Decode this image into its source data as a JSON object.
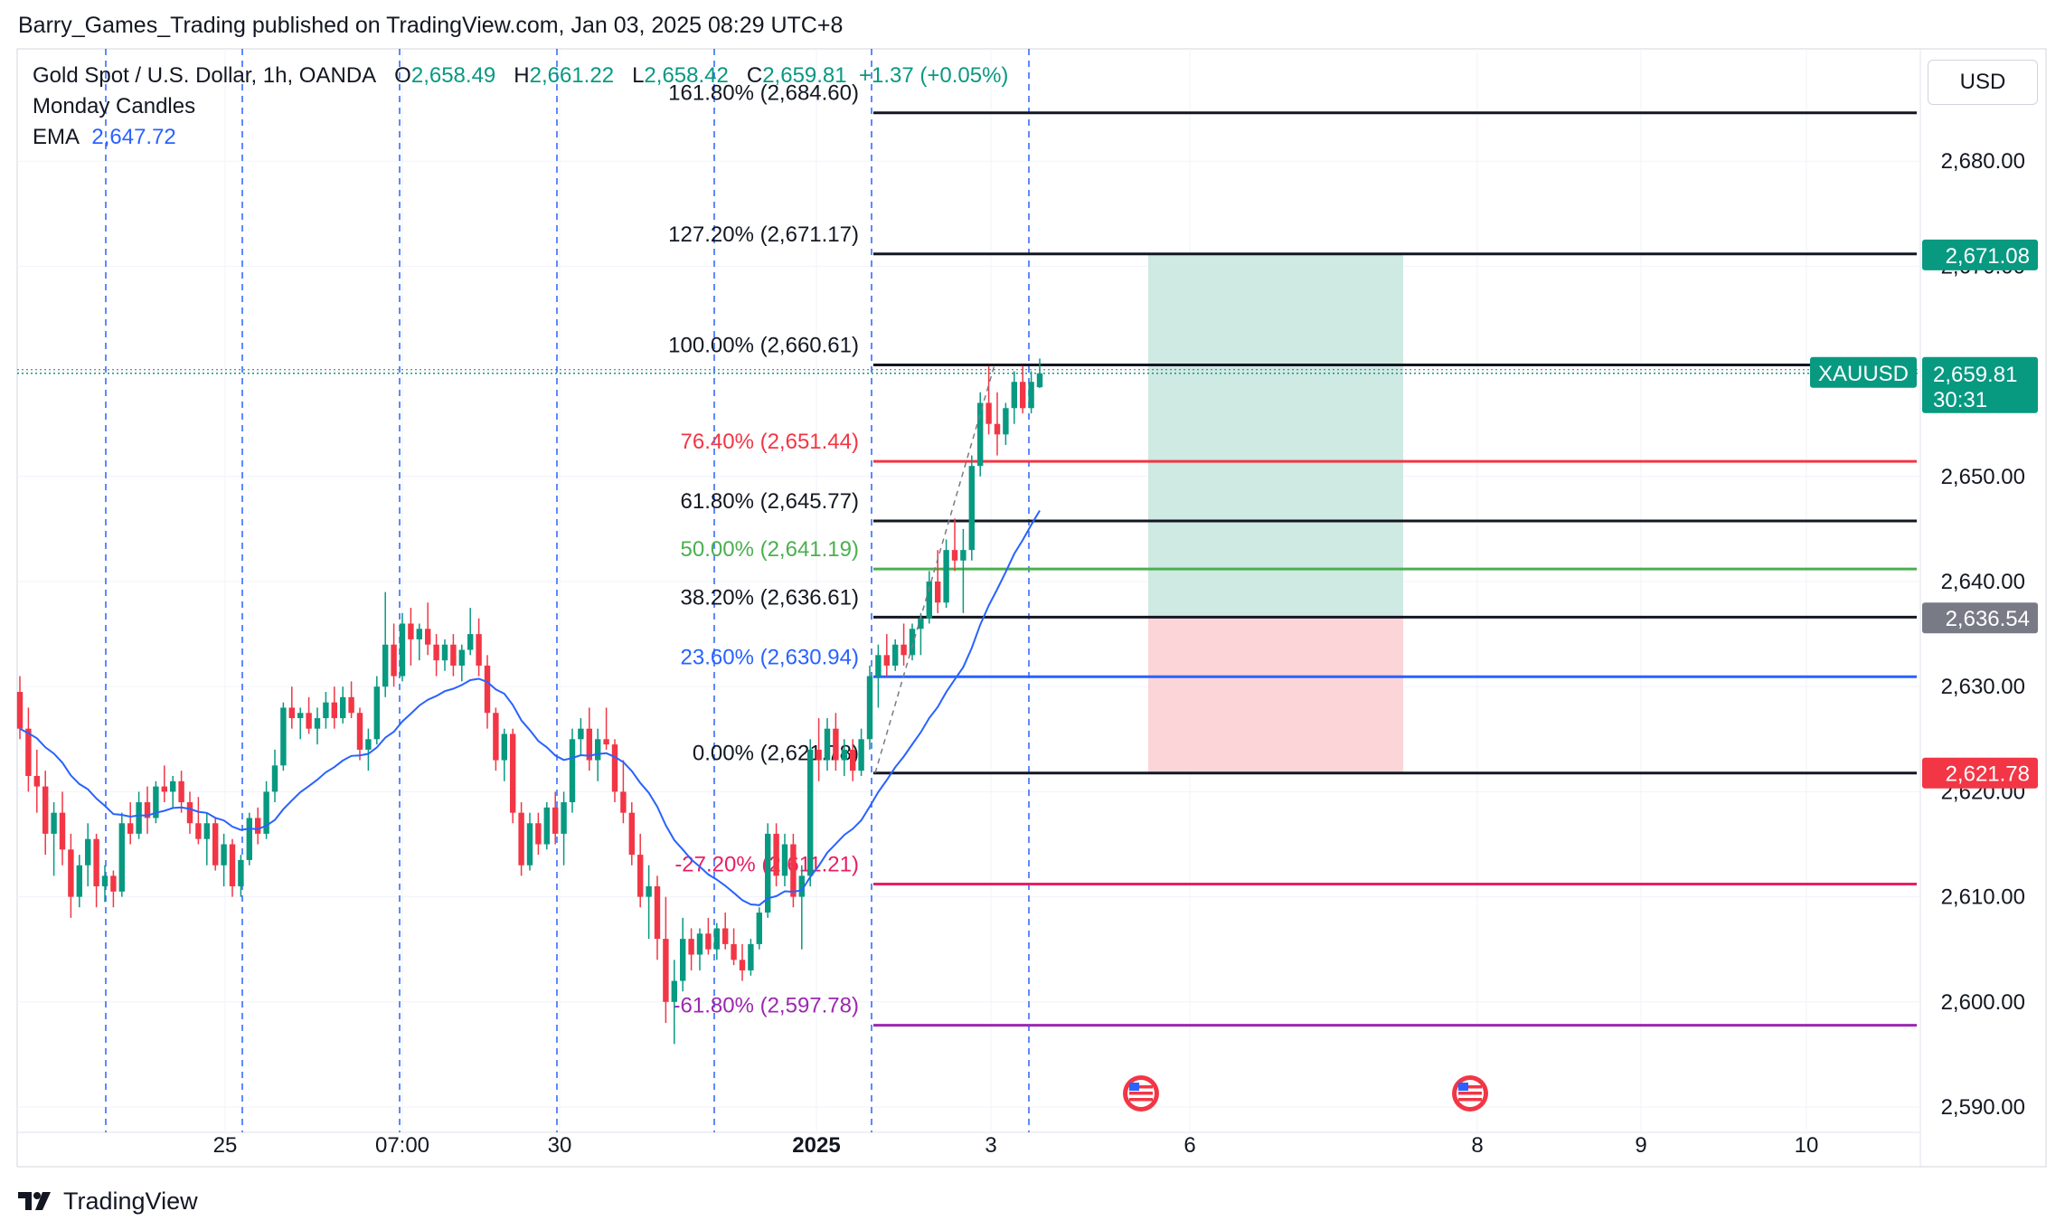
{
  "header": {
    "publisher_line": "Barry_Games_Trading published on TradingView.com, Jan 03, 2025 08:29 UTC+8"
  },
  "legend": {
    "symbol": "Gold Spot / U.S. Dollar, 1h, OANDA",
    "open_label": "O",
    "open": "2,658.49",
    "high_label": "H",
    "high": "2,661.22",
    "low_label": "L",
    "low": "2,658.42",
    "close_label": "C",
    "close": "2,659.81",
    "change": "+1.37 (+0.05%)",
    "indicator_1": "Monday Candles",
    "indicator_2_label": "EMA",
    "indicator_2_value": "2,647.72"
  },
  "currency_button": "USD",
  "footer": {
    "brand": "TradingView"
  },
  "colors": {
    "up": "#089981",
    "down": "#f23645",
    "ema": "#2962ff",
    "fib_black": "#131722",
    "fib_red": "#f23645",
    "fib_green": "#4caf50",
    "fib_blue": "#2962ff",
    "fib_pink": "#e91e63",
    "fib_purple": "#9c27b0",
    "profit_zone": "#cfe9e3",
    "loss_zone": "#fbd5d8",
    "price_badge": "#089981",
    "entry_badge": "#787b86"
  },
  "icons": [
    "us-flag-icon",
    "tradingview-logo-icon"
  ],
  "chart_data": {
    "type": "candlestick",
    "symbol": "XAUUSD",
    "ylim": [
      2585,
      2690
    ],
    "y_ticks": [
      "2,590.00",
      "2,600.00",
      "2,610.00",
      "2,620.00",
      "2,630.00",
      "2,640.00",
      "2,650.00",
      "2,660.00",
      "2,670.00",
      "2,680.00"
    ],
    "x_ticks": [
      "25",
      "07:00",
      "30",
      "2025",
      "3",
      "6",
      "8",
      "9",
      "10"
    ],
    "fib_levels": [
      {
        "label": "161.80% (2,684.60)",
        "price": 2684.6,
        "color": "#131722"
      },
      {
        "label": "127.20% (2,671.17)",
        "price": 2671.17,
        "color": "#131722"
      },
      {
        "label": "100.00% (2,660.61)",
        "price": 2660.61,
        "color": "#131722"
      },
      {
        "label": "76.40% (2,651.44)",
        "price": 2651.44,
        "color": "#f23645"
      },
      {
        "label": "61.80% (2,645.77)",
        "price": 2645.77,
        "color": "#131722"
      },
      {
        "label": "50.00% (2,641.19)",
        "price": 2641.19,
        "color": "#4caf50"
      },
      {
        "label": "38.20% (2,636.61)",
        "price": 2636.61,
        "color": "#131722"
      },
      {
        "label": "23.60% (2,630.94)",
        "price": 2630.94,
        "color": "#2962ff"
      },
      {
        "label": "0.00% (2,621.78)",
        "price": 2621.78,
        "color": "#131722"
      },
      {
        "label": "-27.20% (2,611.21)",
        "price": 2611.21,
        "color": "#e91e63"
      },
      {
        "label": "-61.80% (2,597.78)",
        "price": 2597.78,
        "color": "#9c27b0"
      }
    ],
    "position": {
      "target": 2671.08,
      "entry": 2636.54,
      "stop": 2621.78,
      "target_label": "2,671.08",
      "entry_label": "2,636.54",
      "stop_label": "2,621.78"
    },
    "last_price": {
      "symbol_label": "XAUUSD",
      "price": 2659.81,
      "price_label": "2,659.81",
      "countdown": "30:31"
    },
    "session_separators": 7,
    "ema_last": 2647.72,
    "candles": [
      [
        2629.5,
        2631.0,
        2625.0,
        2626.0
      ],
      [
        2626.0,
        2628.0,
        2620.0,
        2621.5
      ],
      [
        2621.5,
        2624.0,
        2618.0,
        2620.5
      ],
      [
        2620.5,
        2622.0,
        2614.0,
        2616.0
      ],
      [
        2616.0,
        2619.0,
        2612.0,
        2618.0
      ],
      [
        2618.0,
        2620.0,
        2613.0,
        2614.5
      ],
      [
        2614.5,
        2616.0,
        2608.0,
        2610.0
      ],
      [
        2610.0,
        2614.0,
        2609.0,
        2613.0
      ],
      [
        2613.0,
        2617.0,
        2611.0,
        2615.5
      ],
      [
        2615.5,
        2616.0,
        2609.0,
        2611.0
      ],
      [
        2611.0,
        2613.0,
        2609.5,
        2612.0
      ],
      [
        2612.0,
        2612.5,
        2609.0,
        2610.5
      ],
      [
        2610.5,
        2618.0,
        2610.0,
        2617.0
      ],
      [
        2617.0,
        2619.0,
        2615.0,
        2616.0
      ],
      [
        2616.0,
        2620.0,
        2615.5,
        2619.0
      ],
      [
        2619.0,
        2620.5,
        2616.0,
        2617.5
      ],
      [
        2617.5,
        2621.0,
        2617.0,
        2620.5
      ],
      [
        2620.5,
        2622.5,
        2619.0,
        2620.0
      ],
      [
        2620.0,
        2621.5,
        2618.5,
        2621.0
      ],
      [
        2621.0,
        2622.0,
        2618.0,
        2619.0
      ],
      [
        2619.0,
        2620.0,
        2616.0,
        2617.0
      ],
      [
        2617.0,
        2619.5,
        2615.0,
        2615.5
      ],
      [
        2615.5,
        2618.0,
        2613.0,
        2617.0
      ],
      [
        2617.0,
        2617.5,
        2612.5,
        2613.0
      ],
      [
        2613.0,
        2616.0,
        2611.0,
        2615.0
      ],
      [
        2615.0,
        2615.5,
        2610.0,
        2611.0
      ],
      [
        2611.0,
        2614.0,
        2610.0,
        2613.5
      ],
      [
        2613.5,
        2618.0,
        2613.0,
        2617.5
      ],
      [
        2617.5,
        2618.5,
        2615.0,
        2616.0
      ],
      [
        2616.0,
        2621.0,
        2615.5,
        2620.0
      ],
      [
        2620.0,
        2624.0,
        2619.0,
        2622.5
      ],
      [
        2622.5,
        2628.5,
        2622.0,
        2628.0
      ],
      [
        2628.0,
        2630.0,
        2626.0,
        2627.0
      ],
      [
        2627.0,
        2628.0,
        2625.0,
        2627.5
      ],
      [
        2627.5,
        2629.0,
        2625.5,
        2626.0
      ],
      [
        2626.0,
        2628.0,
        2624.5,
        2627.0
      ],
      [
        2627.0,
        2629.5,
        2626.0,
        2628.5
      ],
      [
        2628.5,
        2630.0,
        2626.0,
        2627.0
      ],
      [
        2627.0,
        2630.0,
        2626.5,
        2629.0
      ],
      [
        2629.0,
        2630.5,
        2627.0,
        2627.5
      ],
      [
        2627.5,
        2628.0,
        2623.0,
        2624.0
      ],
      [
        2624.0,
        2626.0,
        2622.0,
        2625.0
      ],
      [
        2625.0,
        2631.0,
        2624.5,
        2630.0
      ],
      [
        2630.0,
        2639.0,
        2629.0,
        2634.0
      ],
      [
        2634.0,
        2636.0,
        2630.0,
        2631.0
      ],
      [
        2631.0,
        2637.0,
        2630.5,
        2636.0
      ],
      [
        2636.0,
        2637.5,
        2632.0,
        2634.5
      ],
      [
        2634.5,
        2636.0,
        2632.5,
        2635.5
      ],
      [
        2635.5,
        2638.0,
        2633.0,
        2634.0
      ],
      [
        2634.0,
        2635.0,
        2631.0,
        2632.5
      ],
      [
        2632.5,
        2634.5,
        2631.5,
        2634.0
      ],
      [
        2634.0,
        2635.0,
        2631.0,
        2632.0
      ],
      [
        2632.0,
        2634.0,
        2630.5,
        2633.5
      ],
      [
        2633.5,
        2637.5,
        2633.0,
        2635.0
      ],
      [
        2635.0,
        2636.5,
        2631.0,
        2632.0
      ],
      [
        2632.0,
        2633.0,
        2626.0,
        2627.5
      ],
      [
        2627.5,
        2628.0,
        2622.0,
        2623.0
      ],
      [
        2623.0,
        2626.0,
        2621.0,
        2625.5
      ],
      [
        2625.5,
        2626.0,
        2617.0,
        2618.0
      ],
      [
        2618.0,
        2619.0,
        2612.0,
        2613.0
      ],
      [
        2613.0,
        2618.0,
        2612.5,
        2617.0
      ],
      [
        2617.0,
        2618.0,
        2614.0,
        2615.0
      ],
      [
        2615.0,
        2619.0,
        2614.5,
        2618.5
      ],
      [
        2618.5,
        2620.0,
        2615.0,
        2616.0
      ],
      [
        2616.0,
        2620.0,
        2613.0,
        2619.0
      ],
      [
        2619.0,
        2626.0,
        2618.0,
        2625.0
      ],
      [
        2625.0,
        2627.0,
        2623.5,
        2626.0
      ],
      [
        2626.0,
        2628.0,
        2622.0,
        2623.0
      ],
      [
        2623.0,
        2626.0,
        2621.0,
        2625.0
      ],
      [
        2625.0,
        2628.0,
        2624.0,
        2624.5
      ],
      [
        2624.5,
        2625.0,
        2619.0,
        2620.0
      ],
      [
        2620.0,
        2623.0,
        2617.0,
        2618.0
      ],
      [
        2618.0,
        2619.0,
        2613.0,
        2614.0
      ],
      [
        2614.0,
        2616.0,
        2609.0,
        2610.0
      ],
      [
        2610.0,
        2613.0,
        2606.0,
        2611.0
      ],
      [
        2611.0,
        2612.0,
        2604.0,
        2606.0
      ],
      [
        2606.0,
        2610.0,
        2598.0,
        2600.0
      ],
      [
        2600.0,
        2604.0,
        2596.0,
        2602.0
      ],
      [
        2602.0,
        2608.0,
        2601.0,
        2606.0
      ],
      [
        2606.0,
        2607.0,
        2603.0,
        2604.5
      ],
      [
        2604.5,
        2607.0,
        2603.0,
        2606.5
      ],
      [
        2606.5,
        2608.0,
        2604.5,
        2605.0
      ],
      [
        2605.0,
        2607.5,
        2604.0,
        2607.0
      ],
      [
        2607.0,
        2608.5,
        2605.0,
        2605.5
      ],
      [
        2605.5,
        2607.0,
        2603.5,
        2604.0
      ],
      [
        2604.0,
        2605.5,
        2602.0,
        2603.0
      ],
      [
        2603.0,
        2606.0,
        2602.5,
        2605.5
      ],
      [
        2605.5,
        2609.0,
        2605.0,
        2608.5
      ],
      [
        2608.5,
        2617.0,
        2608.0,
        2616.0
      ],
      [
        2616.0,
        2617.0,
        2611.0,
        2612.0
      ],
      [
        2612.0,
        2616.0,
        2611.0,
        2615.0
      ],
      [
        2615.0,
        2616.0,
        2609.0,
        2610.0
      ],
      [
        2610.0,
        2613.0,
        2605.0,
        2612.0
      ],
      [
        2612.0,
        2625.0,
        2611.0,
        2624.0
      ],
      [
        2624.0,
        2627.0,
        2621.0,
        2623.0
      ],
      [
        2623.0,
        2627.0,
        2622.0,
        2626.0
      ],
      [
        2626.0,
        2627.5,
        2622.0,
        2623.0
      ],
      [
        2623.0,
        2625.0,
        2621.5,
        2624.0
      ],
      [
        2624.0,
        2625.0,
        2621.0,
        2622.0
      ],
      [
        2622.0,
        2626.0,
        2621.5,
        2625.0
      ],
      [
        2625.0,
        2632.0,
        2624.0,
        2631.0
      ],
      [
        2631.0,
        2634.0,
        2628.0,
        2633.0
      ],
      [
        2633.0,
        2635.0,
        2631.0,
        2632.0
      ],
      [
        2632.0,
        2634.5,
        2631.5,
        2634.0
      ],
      [
        2634.0,
        2636.0,
        2632.0,
        2633.0
      ],
      [
        2633.0,
        2636.0,
        2632.5,
        2635.5
      ],
      [
        2635.5,
        2637.0,
        2633.0,
        2636.5
      ],
      [
        2636.5,
        2641.0,
        2636.0,
        2640.0
      ],
      [
        2640.0,
        2643.0,
        2637.0,
        2638.0
      ],
      [
        2638.0,
        2644.0,
        2637.5,
        2643.0
      ],
      [
        2643.0,
        2646.0,
        2641.0,
        2642.0
      ],
      [
        2642.0,
        2645.0,
        2637.0,
        2643.0
      ],
      [
        2643.0,
        2652.0,
        2642.0,
        2651.0
      ],
      [
        2651.0,
        2658.0,
        2650.0,
        2657.0
      ],
      [
        2657.0,
        2660.5,
        2654.0,
        2655.0
      ],
      [
        2655.0,
        2658.0,
        2652.0,
        2654.0
      ],
      [
        2654.0,
        2657.0,
        2653.0,
        2656.5
      ],
      [
        2656.5,
        2660.0,
        2655.0,
        2659.0
      ],
      [
        2659.0,
        2660.5,
        2656.0,
        2656.5
      ],
      [
        2656.5,
        2660.0,
        2656.0,
        2659.0
      ],
      [
        2658.49,
        2661.22,
        2658.42,
        2659.81
      ]
    ]
  }
}
